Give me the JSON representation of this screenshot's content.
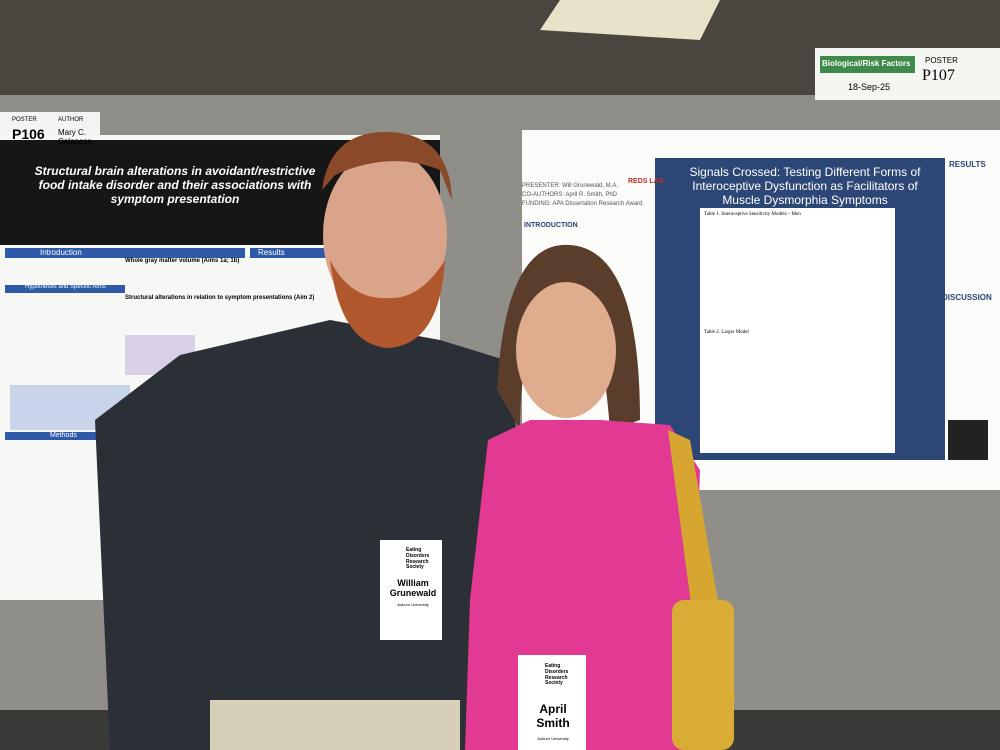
{
  "left_poster": {
    "sign": {
      "label": "POSTER",
      "number": "P106",
      "author_label": "AUTHOR",
      "author": "Mary C. Calanese"
    },
    "title": "Structural brain alterations in avoidant/restrictive food intake disorder and their associations with symptom presentation",
    "sections": [
      "Introduction",
      "Hypotheses and Specific Aims",
      "Methods",
      "Results",
      "Whole gray matter volume (Aims 1a; 1b)",
      "Structural alterations in relation to symptom presentations (Aim 2)"
    ]
  },
  "right_poster": {
    "sign": {
      "category": "Biological/Risk Factors",
      "label": "POSTER",
      "number": "P107",
      "date": "18-Sep-25"
    },
    "title": "Signals Crossed: Testing Different Forms of Interoceptive Dysfunction as Facilitators of Muscle Dysmorphia Symptoms",
    "presenter": "PRESENTER: Will Grunewald, M.A.",
    "coauthors": "CO-AUTHORS: April R. Smith, PhD",
    "funding": "FUNDING: APA Dissertation Research Award",
    "lab": "REDS LAB",
    "sections": [
      "INTRODUCTION",
      "RESULTS",
      "DISCUSSION"
    ],
    "tables": [
      "Table 1. Interoceptive Sensitivity Models – Men",
      "Table 2. Larger Model"
    ]
  },
  "badges": [
    {
      "org": "Eating Disorders Research Society",
      "name": "William Grunewald",
      "affiliation": "Auburn University"
    },
    {
      "org": "Eating Disorders Research Society",
      "name": "April Smith",
      "affiliation": "Auburn University"
    }
  ]
}
